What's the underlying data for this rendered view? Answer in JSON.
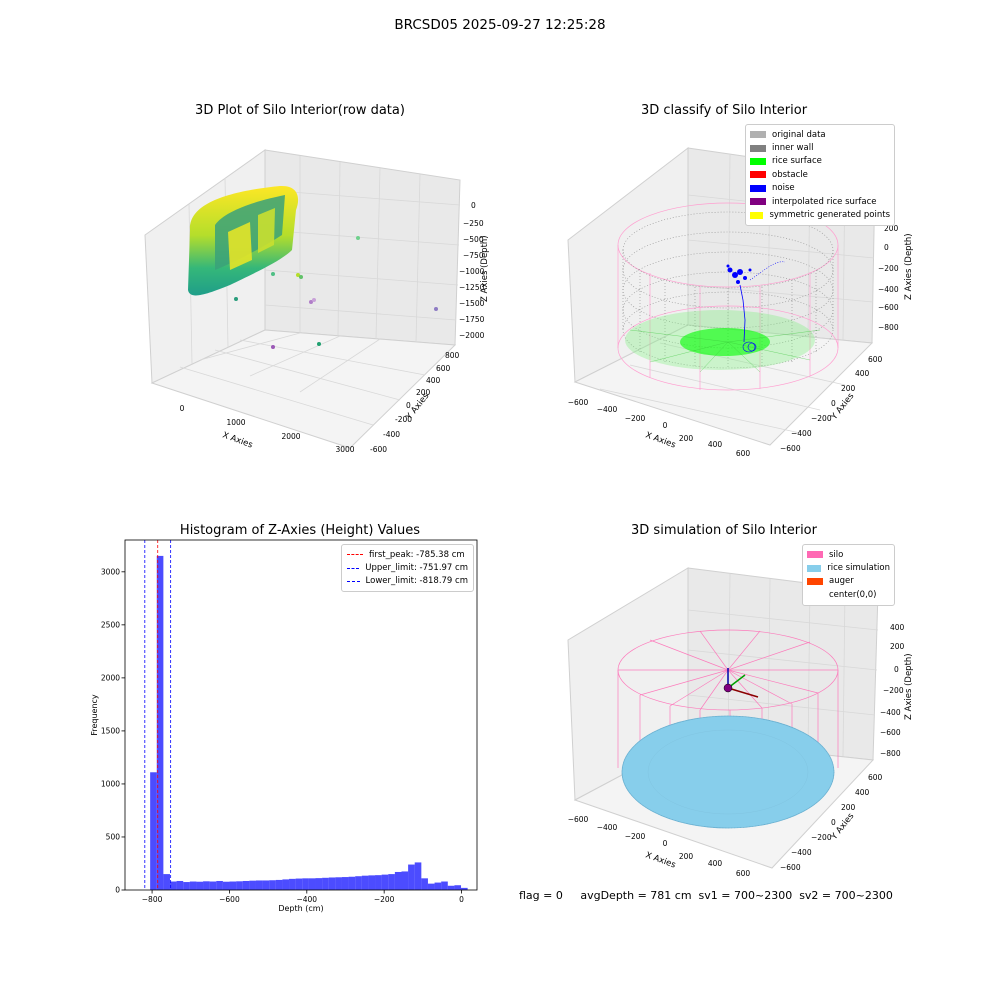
{
  "suptitle": "BRCSD05 2025-09-27 12:25:28",
  "footer": "flag = 0     avgDepth = 781 cm  sv1 = 700~2300  sv2 = 700~2300",
  "colors": {
    "raw_a": "#fde725",
    "raw_b": "#21918c",
    "inner_wall": "#808080",
    "rice_surface": "#00ff00",
    "noise": "#0000ff",
    "silo": "#ff69b4",
    "rice_sim": "#87ceeb",
    "auger": "#ff4500",
    "hist": "#0000ff"
  },
  "chart_data": [
    {
      "type": "scatter",
      "title": "3D Plot of Silo Interior(row data)",
      "xlabel": "X Axies",
      "ylabel": "Y Axies",
      "zlabel": "Z Axies (Depth)",
      "x_ticks": [
        "0",
        "1000",
        "2000",
        "3000"
      ],
      "y_ticks": [
        "-600",
        "-400",
        "-200",
        "0",
        "200",
        "400",
        "600",
        "800"
      ],
      "z_ticks": [
        "0",
        "−250",
        "−500",
        "−750",
        "−1000",
        "−1250",
        "−1500",
        "−1750",
        "−2000"
      ],
      "colormap": "viridis",
      "grid": true
    },
    {
      "type": "scatter",
      "title": "3D classify of Silo Interior",
      "xlabel": "X Axies",
      "ylabel": "Y Axies",
      "zlabel": "Z Axies (Depth)",
      "x_ticks": [
        "−600",
        "−400",
        "−200",
        "0",
        "200",
        "400",
        "600"
      ],
      "y_ticks": [
        "−600",
        "−400",
        "−200",
        "0",
        "200",
        "400",
        "600"
      ],
      "z_ticks": [
        "200",
        "0",
        "−200",
        "−400",
        "−600",
        "−800"
      ],
      "legend_position": "top-right",
      "legend": [
        {
          "label": "original data",
          "color": "#b0b0b0"
        },
        {
          "label": "inner wall",
          "color": "#808080"
        },
        {
          "label": "rice surface",
          "color": "#00ff00"
        },
        {
          "label": "obstacle",
          "color": "#ff0000"
        },
        {
          "label": "noise",
          "color": "#0000ff"
        },
        {
          "label": "interpolated rice surface",
          "color": "#800080"
        },
        {
          "label": "symmetric generated points",
          "color": "#ffff00"
        }
      ],
      "grid": true
    },
    {
      "type": "bar",
      "title": "Histogram of Z-Axies (Height) Values",
      "xlabel": "Depth (cm)",
      "ylabel": "Frequency",
      "xlim": [
        -870,
        40
      ],
      "ylim": [
        0,
        3300
      ],
      "x_ticks": [
        -800,
        -600,
        -400,
        -200,
        0
      ],
      "y_ticks": [
        0,
        500,
        1000,
        1500,
        2000,
        2500,
        3000
      ],
      "bin_width": 17.1,
      "bin_starts": [
        -805,
        -787.9,
        -770.8,
        -753.7,
        -736.6,
        -719.5,
        -702.4,
        -685.3,
        -668.2,
        -651.1,
        -634,
        -616.9,
        -599.8,
        -582.7,
        -565.6,
        -548.5,
        -531.4,
        -514.3,
        -497.2,
        -480.1,
        -463,
        -445.9,
        -428.8,
        -411.7,
        -394.6,
        -377.5,
        -360.4,
        -343.3,
        -326.2,
        -309.1,
        -292,
        -274.9,
        -257.8,
        -240.7,
        -223.6,
        -206.5,
        -189.4,
        -172.3,
        -155.2,
        -138.1,
        -121,
        -103.9,
        -86.8,
        -69.7,
        -52.6,
        -35.5,
        -18.4,
        -1.3
      ],
      "values": [
        1110,
        3150,
        150,
        80,
        85,
        75,
        80,
        78,
        82,
        80,
        85,
        78,
        80,
        82,
        85,
        88,
        90,
        90,
        92,
        95,
        100,
        105,
        108,
        110,
        110,
        112,
        115,
        118,
        120,
        122,
        125,
        130,
        135,
        138,
        140,
        145,
        150,
        170,
        175,
        240,
        260,
        110,
        60,
        70,
        80,
        40,
        45,
        20
      ],
      "vlines": [
        {
          "label": "first_peak: -785.38 cm",
          "x": -785.38,
          "color": "#ff0000"
        },
        {
          "label": "Upper_limit: -751.97 cm",
          "x": -751.97,
          "color": "#0000ff"
        },
        {
          "label": "Lower_limit: -818.79 cm",
          "x": -818.79,
          "color": "#0000ff"
        }
      ],
      "legend_position": "top-right"
    },
    {
      "type": "scatter",
      "title": "3D simulation of Silo Interior",
      "xlabel": "X Axies",
      "ylabel": "Y Axies",
      "zlabel": "Z Axies (Depth)",
      "x_ticks": [
        "−600",
        "−400",
        "−200",
        "0",
        "200",
        "400",
        "600"
      ],
      "y_ticks": [
        "−600",
        "−400",
        "−200",
        "0",
        "200",
        "400",
        "600"
      ],
      "z_ticks": [
        "400",
        "200",
        "0",
        "−200",
        "−400",
        "−600",
        "−800"
      ],
      "legend_position": "top-right",
      "legend": [
        {
          "label": "silo",
          "color": "#ff69b4"
        },
        {
          "label": "rice simulation",
          "color": "#87ceeb"
        },
        {
          "label": "auger",
          "color": "#ff4500"
        },
        {
          "label": "center(0,0)",
          "color": "#ffffff"
        }
      ],
      "grid": true
    }
  ]
}
